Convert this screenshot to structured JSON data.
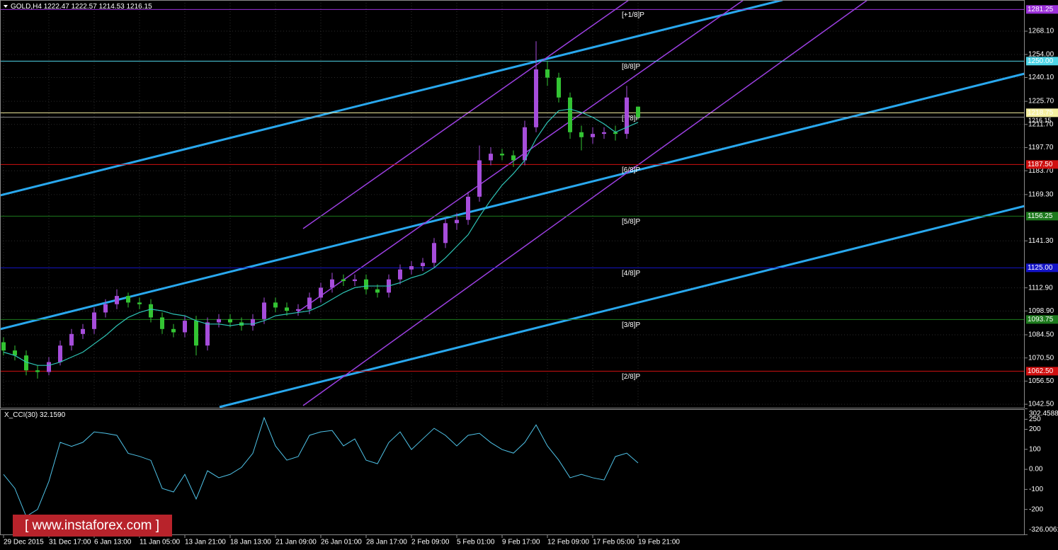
{
  "chart_data": {
    "type": "candlestick",
    "title": "GOLD,H4",
    "x": [
      "29 Dec 2015",
      null,
      null,
      null,
      "31 Dec 17:00",
      null,
      null,
      null,
      "6 Jan 13:00",
      null,
      null,
      null,
      "11 Jan 05:00",
      null,
      null,
      null,
      "13 Jan 21:00",
      null,
      null,
      null,
      "18 Jan 13:00",
      null,
      null,
      null,
      "21 Jan 09:00",
      null,
      null,
      null,
      "26 Jan 01:00",
      null,
      null,
      null,
      "28 Jan 17:00",
      null,
      null,
      null,
      "2 Feb 09:00",
      null,
      null,
      null,
      "5 Feb 01:00",
      null,
      null,
      null,
      "9 Feb 17:00",
      null,
      null,
      null,
      "12 Feb 09:00",
      null,
      null,
      null,
      "17 Feb 05:00",
      null,
      null,
      null,
      "19 Feb 21:00"
    ],
    "open": [
      1080,
      1075,
      1072,
      1063,
      1062,
      1068,
      1078,
      1085,
      1088,
      1098,
      1103,
      1108,
      1104,
      1103,
      1095,
      1088,
      1086,
      1093,
      1078,
      1092,
      1094,
      1092,
      1090,
      1094,
      1104,
      1101,
      1099,
      1100,
      1107,
      1113,
      1118,
      1117,
      1118,
      1112,
      1110,
      1118,
      1124,
      1126,
      1128,
      1140,
      1152,
      1154,
      1168,
      1190,
      1194,
      1193,
      1190,
      1210,
      1245,
      1240,
      1228,
      1207,
      1204,
      1206,
      1207,
      1206,
      1222.47
    ],
    "high": [
      1083,
      1078,
      1075,
      1066,
      1071,
      1081,
      1088,
      1091,
      1101,
      1106,
      1112,
      1110,
      1107,
      1106,
      1098,
      1091,
      1096,
      1096,
      1095,
      1097,
      1097,
      1095,
      1097,
      1107,
      1107,
      1104,
      1103,
      1110,
      1116,
      1122,
      1121,
      1121,
      1121,
      1115,
      1121,
      1127,
      1129,
      1131,
      1143,
      1155,
      1158,
      1171,
      1199,
      1198,
      1197,
      1196,
      1214,
      1262,
      1250,
      1243,
      1231,
      1211,
      1210,
      1210,
      1211,
      1235,
      1222.57
    ],
    "low": [
      1072,
      1069,
      1060,
      1058,
      1060,
      1066,
      1075,
      1082,
      1085,
      1095,
      1100,
      1101,
      1100,
      1092,
      1085,
      1083,
      1083,
      1072,
      1075,
      1089,
      1089,
      1087,
      1087,
      1091,
      1098,
      1096,
      1096,
      1097,
      1104,
      1110,
      1114,
      1114,
      1109,
      1107,
      1107,
      1115,
      1121,
      1123,
      1125,
      1137,
      1148,
      1151,
      1165,
      1187,
      1190,
      1186,
      1187,
      1207,
      1235,
      1225,
      1203,
      1196,
      1200,
      1203,
      1202,
      1203,
      1214.53
    ],
    "close": [
      1075,
      1072,
      1063,
      1062,
      1068,
      1078,
      1085,
      1088,
      1098,
      1103,
      1108,
      1104,
      1103,
      1095,
      1088,
      1086,
      1093,
      1078,
      1092,
      1094,
      1092,
      1090,
      1094,
      1104,
      1101,
      1099,
      1100,
      1107,
      1113,
      1118,
      1117,
      1118,
      1112,
      1110,
      1118,
      1124,
      1126,
      1128,
      1140,
      1152,
      1154,
      1168,
      1190,
      1194,
      1193,
      1190,
      1210,
      1245,
      1240,
      1228,
      1207,
      1204,
      1206,
      1207,
      1206,
      1228,
      1216.15
    ],
    "up_color": "#a64ddb",
    "down_color": "#33c433",
    "ma": {
      "color": "#2ec4b6",
      "values": [
        1074,
        1072,
        1068,
        1066,
        1066,
        1068,
        1071,
        1074,
        1079,
        1084,
        1090,
        1095,
        1098,
        1100,
        1099,
        1097,
        1096,
        1093,
        1091,
        1091,
        1090,
        1091,
        1091,
        1093,
        1096,
        1097,
        1098,
        1099,
        1102,
        1106,
        1110,
        1113,
        1114,
        1114,
        1114,
        1116,
        1119,
        1121,
        1125,
        1131,
        1138,
        1145,
        1156,
        1166,
        1175,
        1182,
        1190,
        1203,
        1213,
        1220,
        1221,
        1219,
        1216,
        1212,
        1207,
        1210,
        1213
      ]
    },
    "ylim": [
      1040.4,
      1286.1
    ],
    "yticks": [
      {
        "value": 1268.1,
        "label": "1268.10"
      },
      {
        "value": 1254,
        "label": "1254.00"
      },
      {
        "value": 1240.1,
        "label": "1240.10"
      },
      {
        "value": 1225.7,
        "label": "1225.70"
      },
      {
        "value": 1211.7,
        "label": "1211.70"
      },
      {
        "value": 1197.7,
        "label": "1197.70"
      },
      {
        "value": 1183.7,
        "label": "1183.70"
      },
      {
        "value": 1169.3,
        "label": "1169.30"
      },
      {
        "value": 1141.3,
        "label": "1141.30"
      },
      {
        "value": 1112.9,
        "label": "1112.90"
      },
      {
        "value": 1098.9,
        "label": "1098.90"
      },
      {
        "value": 1084.5,
        "label": "1084.50"
      },
      {
        "value": 1070.5,
        "label": "1070.50"
      },
      {
        "value": 1056.5,
        "label": "1056.50"
      },
      {
        "value": 1042.5,
        "label": "1042.50"
      }
    ],
    "grid": true,
    "levels": [
      {
        "name": "[+1/8]P",
        "value": 1281.25,
        "label": "1281.25",
        "color": "#9b30d9"
      },
      {
        "name": "[8/8]P",
        "value": 1250,
        "label": "1250.00",
        "color": "#4fd6e8"
      },
      {
        "name": "[7/8]P",
        "value": 1218.75,
        "label": "1218.75",
        "color": "#f5f0a0"
      },
      {
        "name": "[6/8]P",
        "value": 1187.5,
        "label": "1187.50",
        "color": "#d01010"
      },
      {
        "name": "[5/8]P",
        "value": 1156.25,
        "label": "1156.25",
        "color": "#1d7a1d"
      },
      {
        "name": "[4/8]P",
        "value": 1125,
        "label": "1125.00",
        "color": "#1414c8"
      },
      {
        "name": "[3/8]P",
        "value": 1093.75,
        "label": "1093.75",
        "color": "#1d7a1d"
      },
      {
        "name": "[2/8]P",
        "value": 1062.5,
        "label": "1062.50",
        "color": "#d01010"
      }
    ],
    "cci": {
      "title": "X_CCI(30)",
      "last_value_label": "32.1590",
      "color": "#4fc3e8",
      "values": [
        -25,
        -95,
        -235,
        -200,
        -60,
        135,
        115,
        135,
        187,
        180,
        170,
        80,
        65,
        45,
        -95,
        -113,
        -25,
        -148,
        -7,
        -42,
        -25,
        10,
        80,
        258,
        117,
        46,
        64,
        170,
        187,
        194,
        117,
        152,
        46,
        28,
        134,
        187,
        99,
        152,
        205,
        170,
        117,
        170,
        180,
        134,
        99,
        81,
        134,
        222,
        117,
        46,
        -42,
        -25,
        -42,
        -53,
        64,
        81,
        32.159
      ],
      "ylim": [
        -326.0061,
        302.4588
      ],
      "yticks": [
        302.4588,
        250,
        200,
        100,
        {
          "value": 0,
          "label": "0.00"
        },
        -100,
        -200,
        -326.0061
      ]
    },
    "watermark": "[ www.instaforex.com ]"
  }
}
